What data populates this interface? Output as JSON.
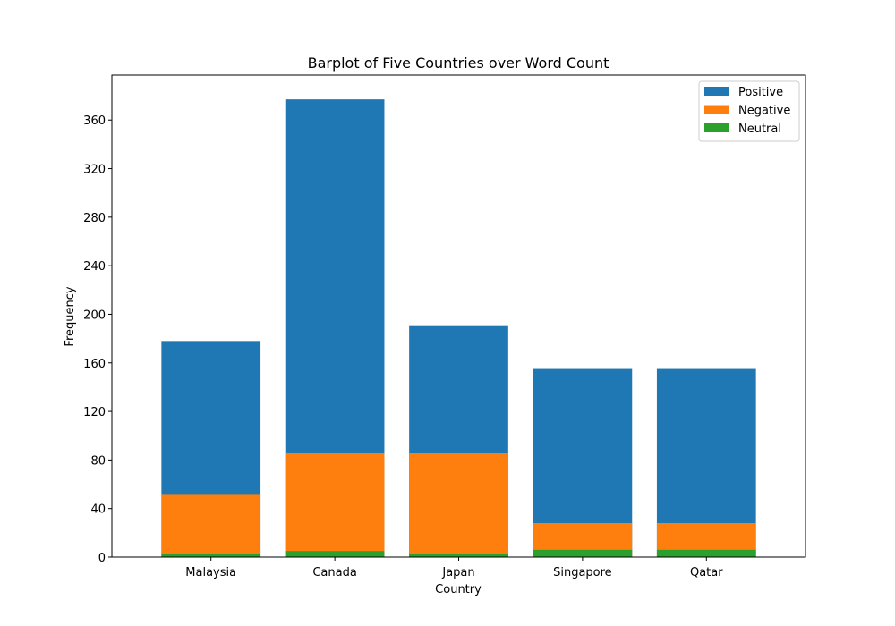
{
  "chart_data": {
    "type": "bar",
    "stacked": "overlay",
    "title": "Barplot of Five Countries over Word Count",
    "xlabel": "Country",
    "ylabel": "Frequency",
    "categories": [
      "Malaysia",
      "Canada",
      "Japan",
      "Singapore",
      "Qatar"
    ],
    "ylim": [
      0,
      397
    ],
    "yticks": [
      0,
      40,
      80,
      120,
      160,
      200,
      240,
      280,
      320,
      360
    ],
    "grid": false,
    "legend_position": "top-right",
    "series": [
      {
        "name": "Positive",
        "color": "#1f77b4",
        "values": [
          178,
          377,
          191,
          155,
          155
        ]
      },
      {
        "name": "Negative",
        "color": "#ff7f0e",
        "values": [
          52,
          86,
          86,
          28,
          28
        ]
      },
      {
        "name": "Neutral",
        "color": "#2ca02c",
        "values": [
          3,
          5,
          3,
          6,
          6
        ]
      }
    ]
  }
}
